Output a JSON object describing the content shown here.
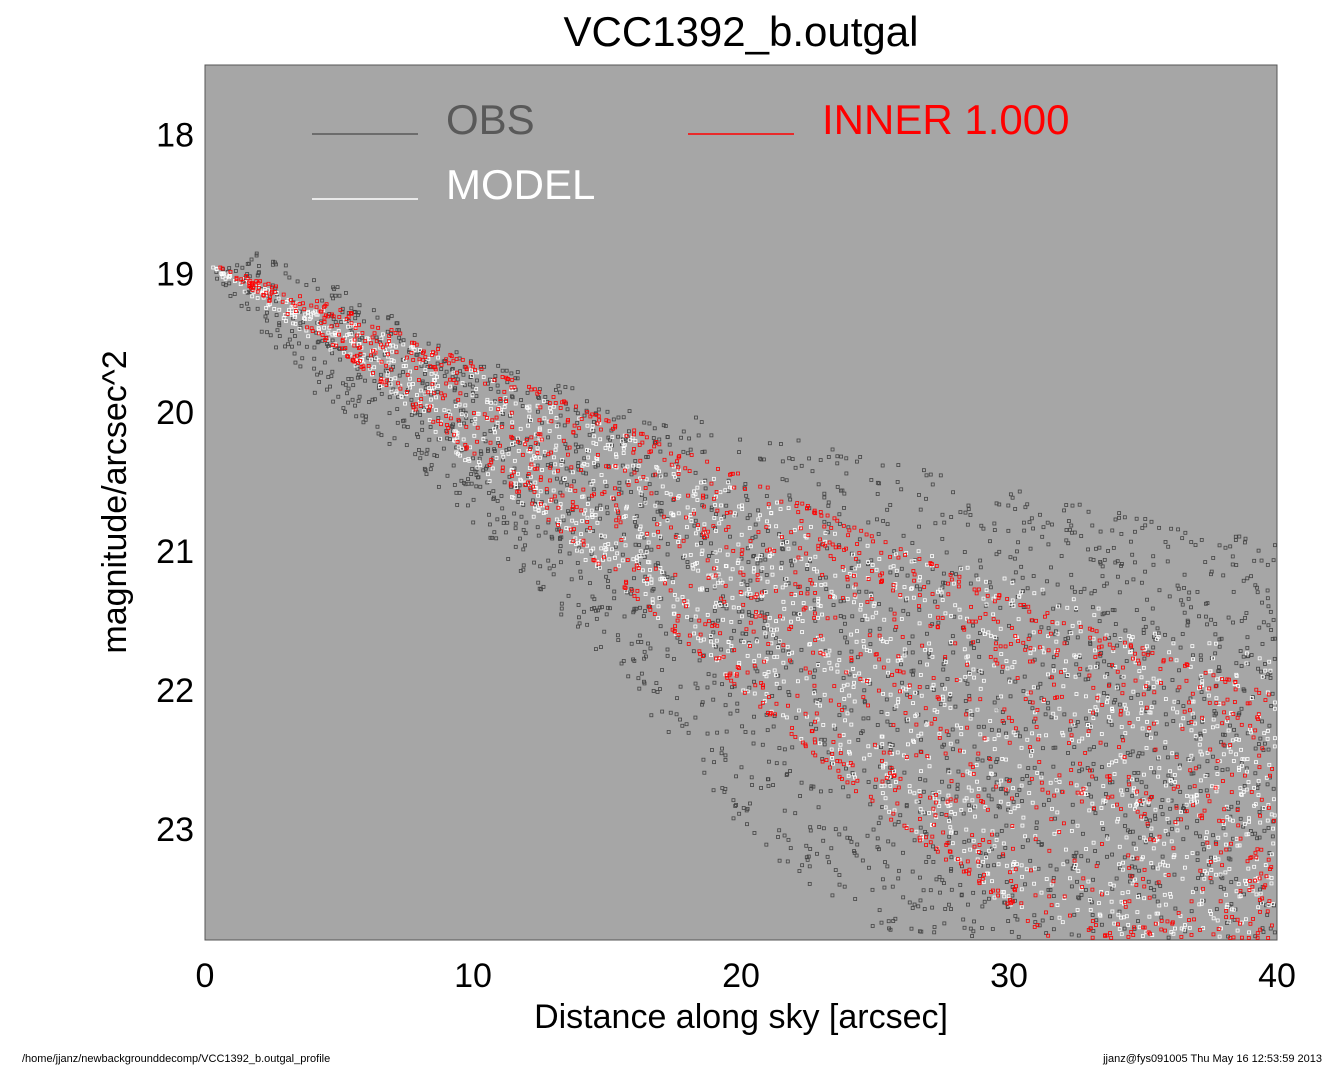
{
  "chart_data": {
    "type": "scatter",
    "title": "VCC1392_b.outgal",
    "xlabel": "Distance along sky [arcsec]",
    "ylabel": "magnitude/arcsec^2",
    "xlim": [
      0,
      40
    ],
    "ylim": [
      23.8,
      17.5
    ],
    "y_inverted": true,
    "background_color": "#a6a6a6",
    "xticks": [
      0,
      10,
      20,
      30,
      40
    ],
    "yticks": [
      18,
      19,
      20,
      21,
      22,
      23
    ],
    "legend": [
      {
        "label": "OBS",
        "color": "#595959"
      },
      {
        "label": "MODEL",
        "color": "#ffffff"
      },
      {
        "label": "INNER  1.000",
        "color": "#ff0000"
      }
    ],
    "series": [
      {
        "name": "OBS",
        "color": "#444444",
        "marker": "open-square",
        "description_points": {
          "x": [
            0.3,
            1,
            2,
            3,
            5,
            8,
            10,
            15,
            20,
            25,
            30,
            35,
            40
          ],
          "y_upper": [
            18.9,
            18.95,
            18.85,
            18.9,
            19.1,
            19.4,
            19.6,
            19.9,
            20.1,
            20.3,
            20.55,
            20.75,
            20.95
          ],
          "y_lower": [
            19.0,
            19.2,
            19.4,
            19.7,
            20.0,
            20.4,
            20.8,
            21.8,
            23.0,
            23.8,
            23.8,
            23.8,
            23.8
          ]
        }
      },
      {
        "name": "MODEL",
        "color": "#ffffff",
        "marker": "open-square",
        "description_points": {
          "x": [
            0.3,
            5,
            10,
            15,
            20,
            25,
            30,
            35,
            40
          ],
          "y_upper": [
            18.95,
            19.3,
            19.7,
            20.1,
            20.5,
            20.9,
            21.2,
            21.5,
            21.8
          ],
          "y_lower": [
            19.0,
            19.6,
            20.4,
            21.2,
            22.0,
            22.8,
            23.6,
            23.8,
            23.8
          ]
        }
      },
      {
        "name": "INNER  1.000",
        "color": "#ff0000",
        "marker": "open-square",
        "description_points": {
          "x": [
            0.5,
            5,
            10,
            15,
            20,
            25,
            30,
            31.5,
            35,
            40
          ],
          "y_upper": [
            18.95,
            19.25,
            19.65,
            20.05,
            20.45,
            20.9,
            21.35,
            21.45,
            21.7,
            22.05
          ],
          "y_lower": [
            18.95,
            19.55,
            20.3,
            21.15,
            22.0,
            22.85,
            23.55,
            23.8,
            23.8,
            23.8
          ]
        }
      }
    ]
  },
  "footer": {
    "left": "/home/jjanz/newbackgrounddecomp/VCC1392_b.outgal_profile",
    "right": "jjanz@fys091005  Thu May 16 12:53:59 2013"
  }
}
